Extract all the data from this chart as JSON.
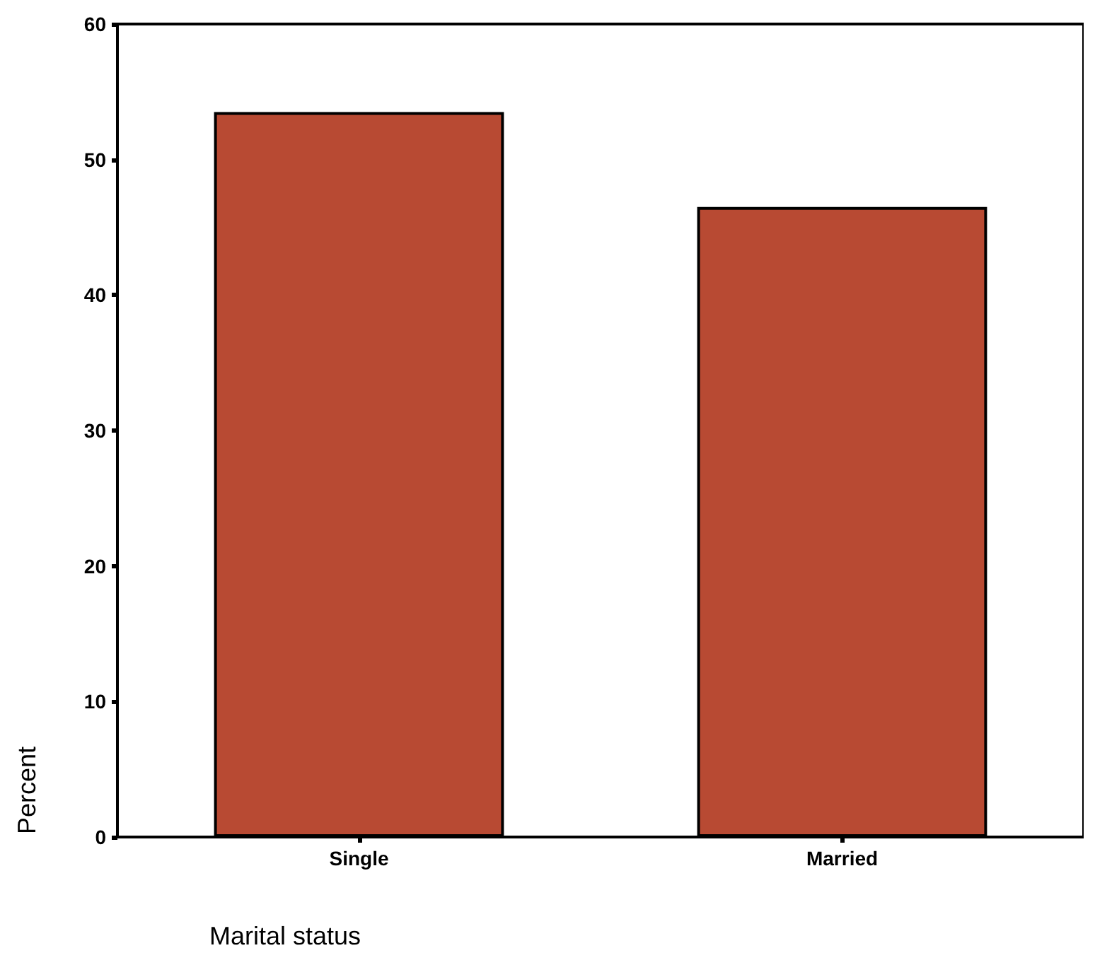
{
  "chart_data": {
    "type": "bar",
    "xlabel": "Marital status",
    "ylabel": "Percent",
    "categories": [
      "Single",
      "Married"
    ],
    "values": [
      53.5,
      46.5
    ],
    "color": "#b84a33",
    "ylim": [
      0,
      60
    ],
    "yticks": [
      0,
      10,
      20,
      30,
      40,
      50,
      60
    ],
    "grid": false
  }
}
